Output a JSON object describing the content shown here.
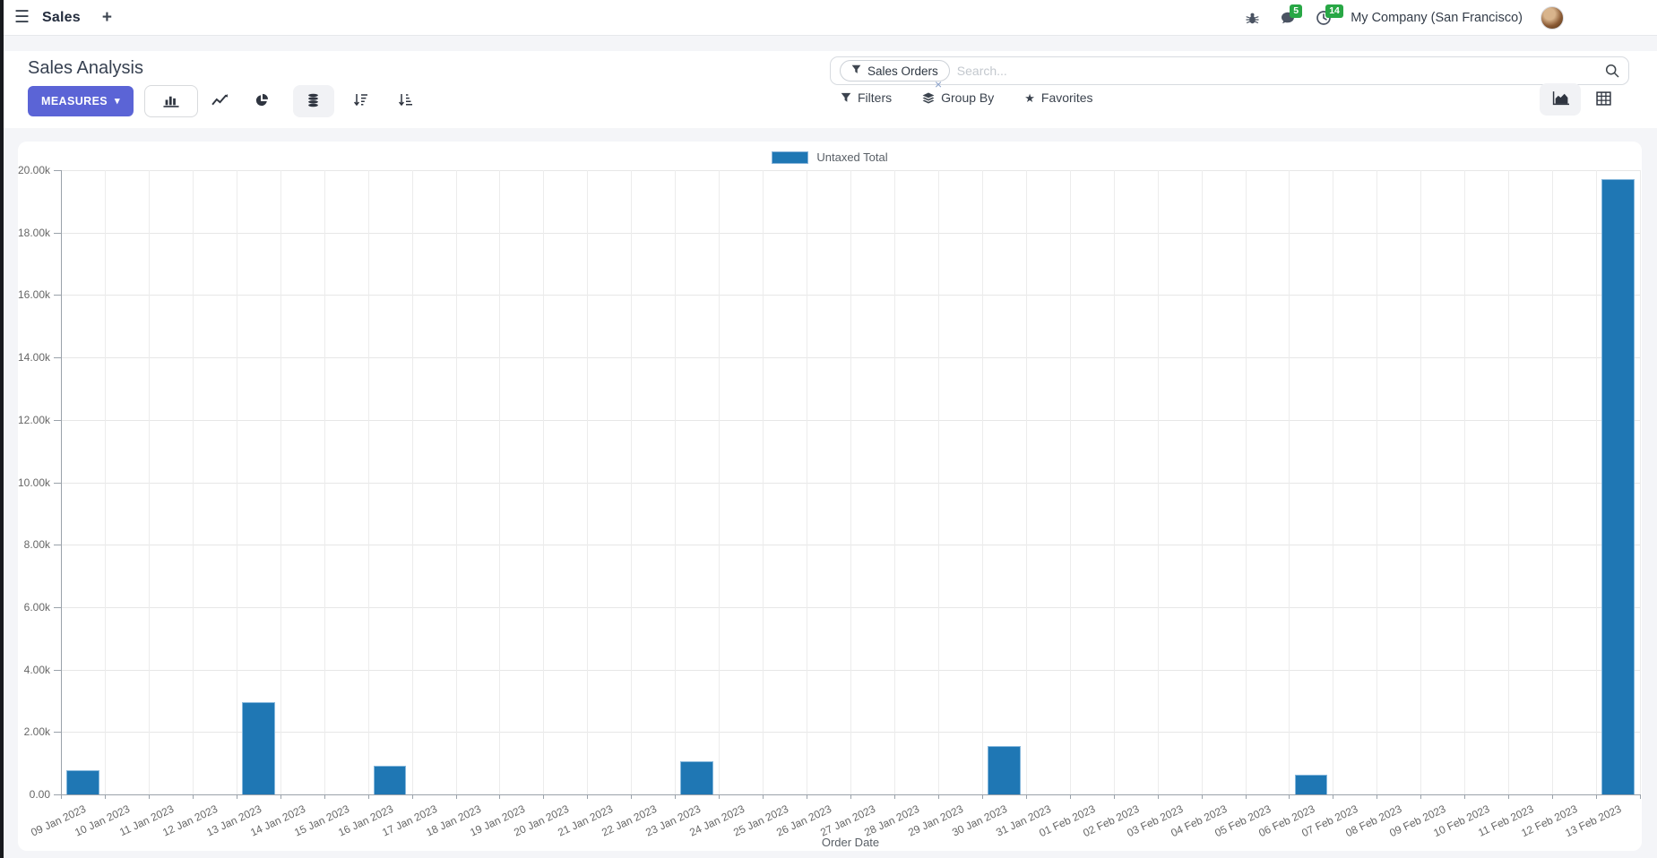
{
  "colors": {
    "primary": "#5b64d6",
    "bar": "#1f77b4",
    "badge": "#28a745"
  },
  "icons": {
    "hamburger_menu": "☰",
    "plus": "+",
    "caret_down": "▾",
    "close": "×",
    "star": "★"
  },
  "navbar": {
    "app_name": "Sales",
    "messages_badge": "5",
    "activities_badge": "14",
    "company": "My Company (San Francisco)"
  },
  "control_panel": {
    "title": "Sales Analysis",
    "measures_label": "MEASURES",
    "search": {
      "facet": "Sales Orders",
      "placeholder": "Search..."
    },
    "filters_label": "Filters",
    "group_by_label": "Group By",
    "favorites_label": "Favorites"
  },
  "chart_data": {
    "type": "bar",
    "title": "",
    "xlabel": "Order Date",
    "ylabel": "",
    "grid": true,
    "legend_position": "top",
    "ylim": [
      0,
      20000
    ],
    "ytick_step": 2000,
    "ytick_labels": [
      "0.00",
      "2.00k",
      "4.00k",
      "6.00k",
      "8.00k",
      "10.00k",
      "12.00k",
      "14.00k",
      "16.00k",
      "18.00k",
      "20.00k"
    ],
    "categories": [
      "09 Jan 2023",
      "10 Jan 2023",
      "11 Jan 2023",
      "12 Jan 2023",
      "13 Jan 2023",
      "14 Jan 2023",
      "15 Jan 2023",
      "16 Jan 2023",
      "17 Jan 2023",
      "18 Jan 2023",
      "19 Jan 2023",
      "20 Jan 2023",
      "21 Jan 2023",
      "22 Jan 2023",
      "23 Jan 2023",
      "24 Jan 2023",
      "25 Jan 2023",
      "26 Jan 2023",
      "27 Jan 2023",
      "28 Jan 2023",
      "29 Jan 2023",
      "30 Jan 2023",
      "31 Jan 2023",
      "01 Feb 2023",
      "02 Feb 2023",
      "03 Feb 2023",
      "04 Feb 2023",
      "05 Feb 2023",
      "06 Feb 2023",
      "07 Feb 2023",
      "08 Feb 2023",
      "09 Feb 2023",
      "10 Feb 2023",
      "11 Feb 2023",
      "12 Feb 2023",
      "13 Feb 2023"
    ],
    "series": [
      {
        "name": "Untaxed Total",
        "color": "#1f77b4",
        "values": [
          780,
          0,
          0,
          0,
          2950,
          0,
          0,
          920,
          0,
          0,
          0,
          0,
          0,
          0,
          1070,
          0,
          0,
          0,
          0,
          0,
          0,
          1550,
          0,
          0,
          0,
          0,
          0,
          0,
          640,
          0,
          0,
          0,
          0,
          0,
          0,
          19700
        ]
      }
    ]
  }
}
